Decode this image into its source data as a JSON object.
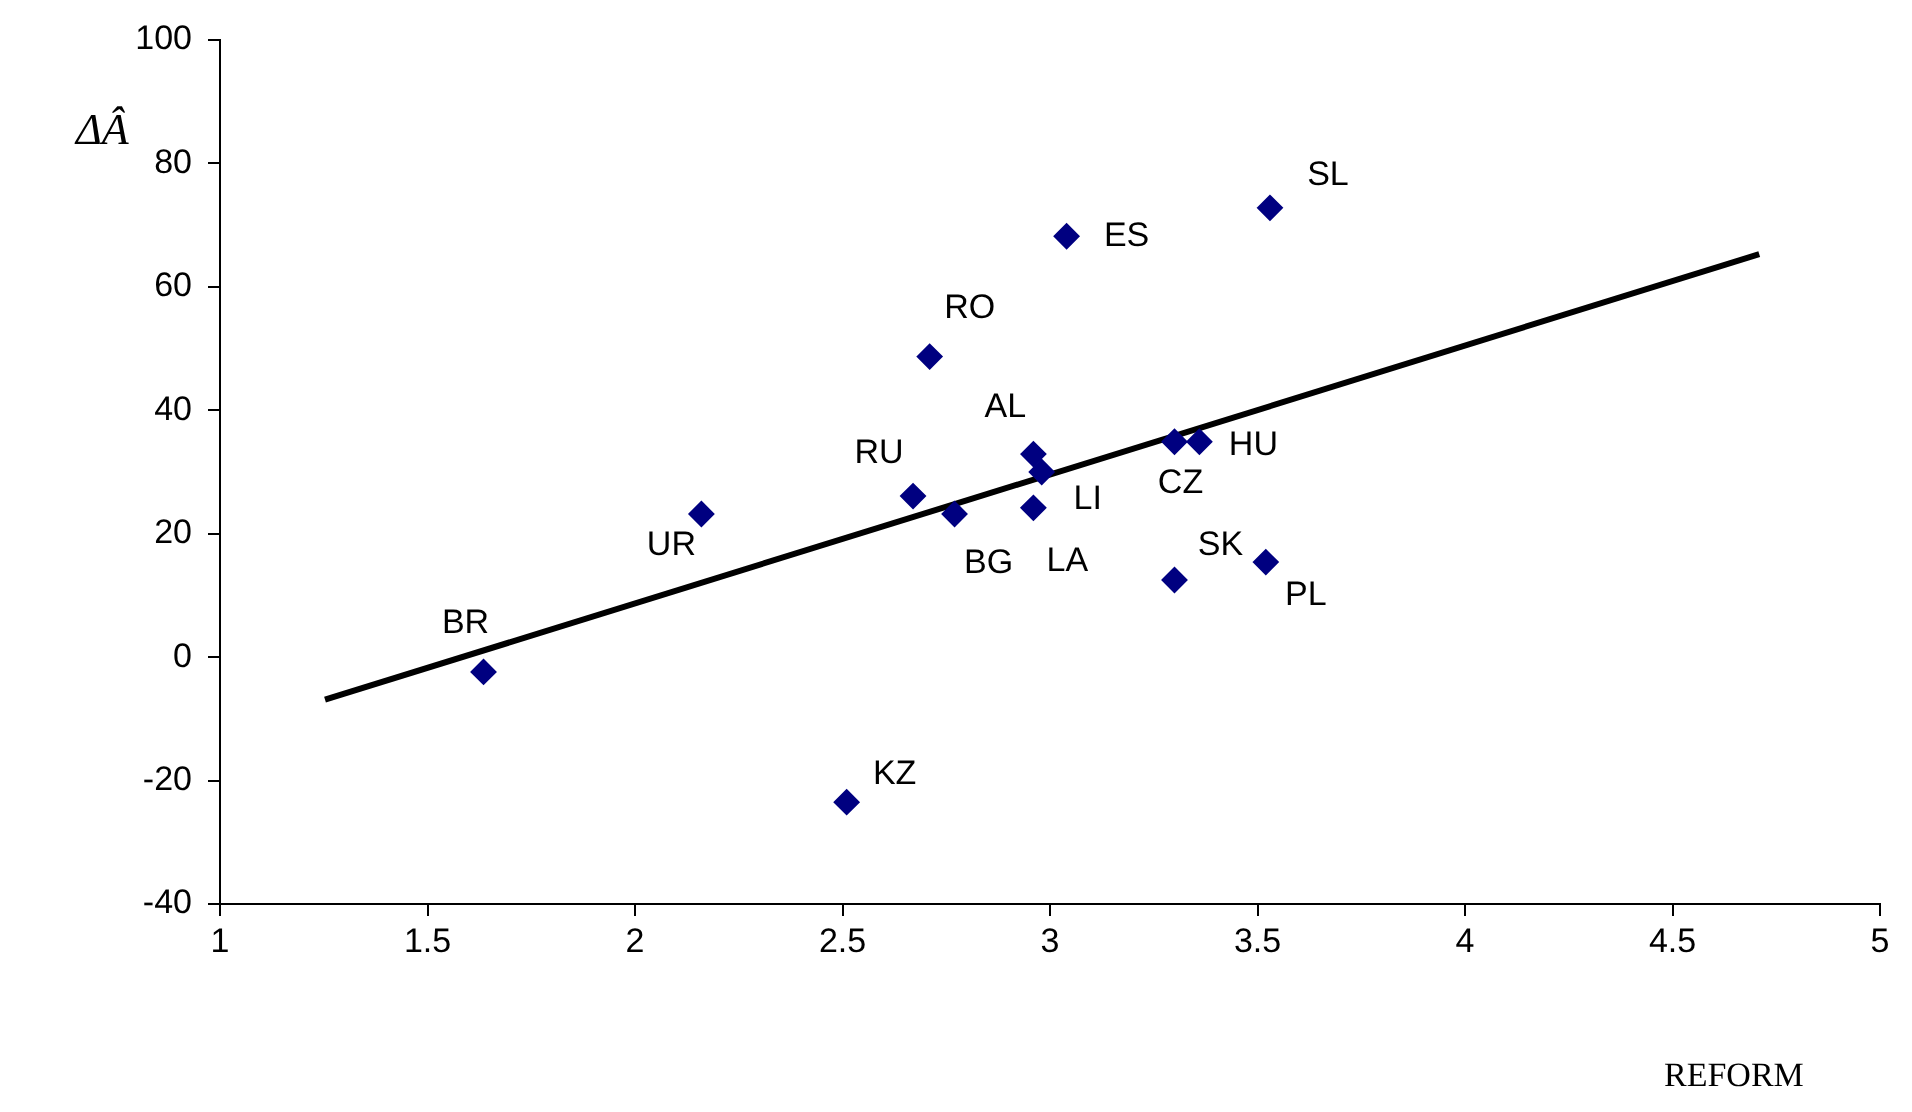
{
  "chart_data": {
    "type": "scatter",
    "xlabel": "REFORM",
    "ylabel": "ΔÂ",
    "xlim": [
      1,
      5
    ],
    "xticks": [
      1,
      1.5,
      2,
      2.5,
      3,
      3.5,
      4,
      4.5,
      5
    ],
    "ylim": [
      -40,
      100
    ],
    "yticks": [
      -40,
      -20,
      0,
      20,
      40,
      60,
      80,
      100
    ],
    "grid": false,
    "legend": false,
    "marker": "diamond",
    "series": [
      {
        "type": "scatter",
        "color": "#000080",
        "x": [
          1.635,
          2.16,
          2.51,
          2.67,
          2.77,
          2.71,
          2.96,
          2.98,
          2.96,
          3.04,
          3.3,
          3.36,
          3.3,
          3.52,
          3.53
        ],
        "values": [
          -2.4,
          23.2,
          -23.5,
          26.1,
          23.2,
          48.7,
          32.9,
          30.0,
          24.2,
          68.2,
          34.9,
          34.9,
          12.5,
          15.4,
          72.8
        ]
      },
      {
        "type": "line",
        "color": "#000000",
        "marker": "none",
        "x": [
          1.253,
          4.709
        ],
        "values": [
          -6.9,
          65.3
        ]
      }
    ],
    "annotations": [
      {
        "text": "BR",
        "x": 1.635,
        "y": -2.4
      },
      {
        "text": "UR",
        "x": 2.16,
        "y": 23.2
      },
      {
        "text": "KZ",
        "x": 2.51,
        "y": -23.5
      },
      {
        "text": "RU",
        "x": 2.67,
        "y": 26.1
      },
      {
        "text": "BG",
        "x": 2.77,
        "y": 23.2
      },
      {
        "text": "RO",
        "x": 2.71,
        "y": 48.7
      },
      {
        "text": "AL",
        "x": 2.96,
        "y": 32.9
      },
      {
        "text": "LI",
        "x": 2.98,
        "y": 30.0
      },
      {
        "text": "LA",
        "x": 2.96,
        "y": 24.2
      },
      {
        "text": "ES",
        "x": 3.04,
        "y": 68.2
      },
      {
        "text": "CZ",
        "x": 3.3,
        "y": 34.9
      },
      {
        "text": "HU",
        "x": 3.36,
        "y": 34.9
      },
      {
        "text": "SK",
        "x": 3.3,
        "y": 12.5
      },
      {
        "text": "PL",
        "x": 3.52,
        "y": 15.4
      },
      {
        "text": "SL",
        "x": 3.53,
        "y": 72.8
      }
    ]
  }
}
